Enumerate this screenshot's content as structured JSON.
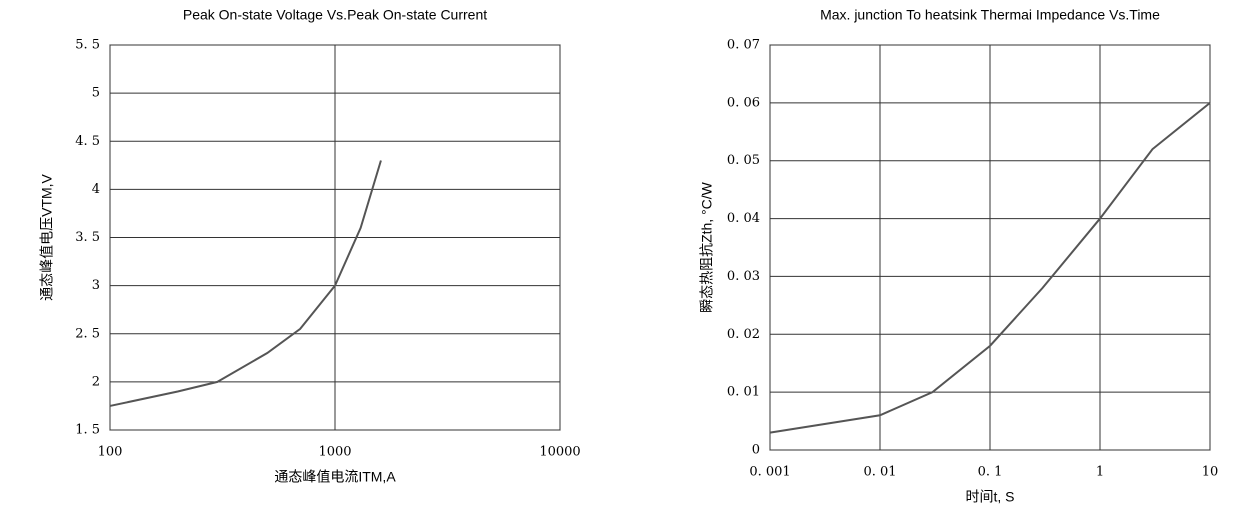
{
  "chart_data": [
    {
      "type": "line",
      "title": "Peak On-state Voltage Vs.Peak On-state Current",
      "xlabel": "通态峰值电流ITM,A",
      "ylabel": "通态峰值电压VTM,V",
      "log_x": true,
      "grid": true,
      "x": [
        100,
        200,
        300,
        500,
        700,
        1000,
        1300,
        1600
      ],
      "series": [
        {
          "color": "#555555",
          "values": [
            1.75,
            1.9,
            2.0,
            2.3,
            2.55,
            3.0,
            3.6,
            4.3
          ]
        }
      ],
      "xlim": [
        100,
        10000
      ],
      "xticks": [
        100,
        1000,
        10000
      ],
      "ylim": [
        1.5,
        5.5
      ],
      "yticks": [
        {
          "value": 1.5,
          "label": "1. 5"
        },
        2,
        {
          "value": 2.5,
          "label": "2. 5"
        },
        3,
        {
          "value": 3.5,
          "label": "3. 5"
        },
        4,
        {
          "value": 4.5,
          "label": "4. 5"
        },
        5,
        {
          "value": 5.5,
          "label": "5. 5"
        }
      ]
    },
    {
      "type": "line",
      "title": "Max. junction To heatsink Thermai Impedance Vs.Time",
      "xlabel": "时间t, S",
      "ylabel": "瞬态热阻抗Zth, °C/W",
      "log_x": true,
      "grid": true,
      "x": [
        0.001,
        0.01,
        0.03,
        0.1,
        0.3,
        1,
        3,
        10
      ],
      "series": [
        {
          "color": "#555555",
          "values": [
            0.003,
            0.006,
            0.01,
            0.018,
            0.028,
            0.04,
            0.052,
            0.06
          ]
        }
      ],
      "xlim": [
        0.001,
        10
      ],
      "xticks": [
        {
          "value": 0.001,
          "label": "0. 001"
        },
        {
          "value": 0.01,
          "label": "0. 01"
        },
        {
          "value": 0.1,
          "label": "0. 1"
        },
        1,
        10
      ],
      "ylim": [
        0,
        0.07
      ],
      "yticks": [
        0,
        {
          "value": 0.01,
          "label": "0. 01"
        },
        {
          "value": 0.02,
          "label": "0. 02"
        },
        {
          "value": 0.03,
          "label": "0. 03"
        },
        {
          "value": 0.04,
          "label": "0. 04"
        },
        {
          "value": 0.05,
          "label": "0. 05"
        },
        {
          "value": 0.06,
          "label": "0. 06"
        },
        {
          "value": 0.07,
          "label": "0. 07"
        }
      ]
    }
  ]
}
